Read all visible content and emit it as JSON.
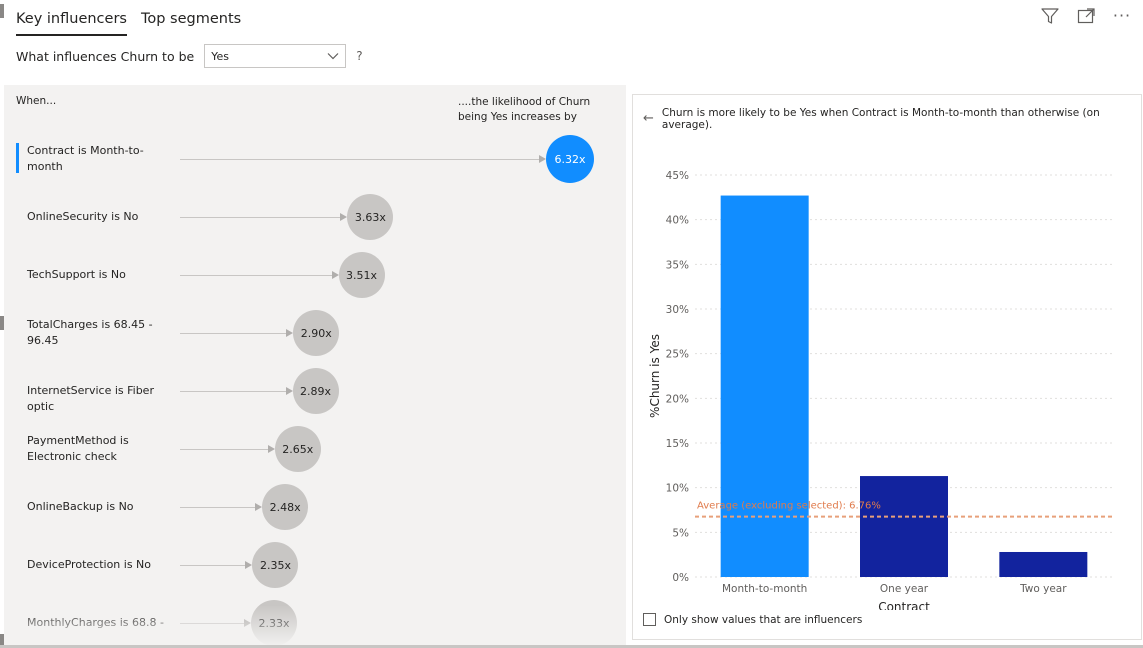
{
  "tabs": [
    {
      "label": "Key influencers",
      "active": true
    },
    {
      "label": "Top segments",
      "active": false
    }
  ],
  "toolbar": {
    "filter_icon": "filter-icon",
    "focus_icon": "focus-mode-icon",
    "more_label": "···"
  },
  "question": {
    "prefix": "What influences Churn to be",
    "selected_value": "Yes",
    "help": "?"
  },
  "left_panel": {
    "header_when": "When...",
    "header_likelihood": "....the likelihood of Churn being Yes increases by",
    "influencers": [
      {
        "label": "Contract is Month-to-month",
        "value": 6.32,
        "display": "6.32x",
        "selected": true
      },
      {
        "label": "OnlineSecurity is No",
        "value": 3.63,
        "display": "3.63x",
        "selected": false
      },
      {
        "label": "TechSupport is No",
        "value": 3.51,
        "display": "3.51x",
        "selected": false
      },
      {
        "label": "TotalCharges is 68.45 - 96.45",
        "value": 2.9,
        "display": "2.90x",
        "selected": false
      },
      {
        "label": "InternetService is Fiber optic",
        "value": 2.89,
        "display": "2.89x",
        "selected": false
      },
      {
        "label": "PaymentMethod is Electronic check",
        "value": 2.65,
        "display": "2.65x",
        "selected": false
      },
      {
        "label": "OnlineBackup is No",
        "value": 2.48,
        "display": "2.48x",
        "selected": false
      },
      {
        "label": "DeviceProtection is No",
        "value": 2.35,
        "display": "2.35x",
        "selected": false
      },
      {
        "label": "MonthlyCharges is 68.8 -",
        "value": 2.33,
        "display": "2.33x",
        "selected": false
      }
    ]
  },
  "right_panel": {
    "back_icon": "back-arrow-icon",
    "description": "Churn is more likely to be Yes when Contract is Month-to-month than otherwise (on average).",
    "only_influencers_label": "Only show values that are influencers",
    "only_influencers_checked": false
  },
  "chart_data": {
    "type": "bar",
    "categories": [
      "Month-to-month",
      "One year",
      "Two year"
    ],
    "values": [
      42.7,
      11.3,
      2.8
    ],
    "bar_colors": [
      "#118dff",
      "#12239e",
      "#12239e"
    ],
    "xlabel": "Contract",
    "ylabel": "%Churn is Yes",
    "ylim": [
      0,
      45
    ],
    "yticks": [
      0,
      5,
      10,
      15,
      20,
      25,
      30,
      35,
      40,
      45
    ],
    "ytick_labels": [
      "0%",
      "5%",
      "10%",
      "15%",
      "20%",
      "25%",
      "30%",
      "35%",
      "40%",
      "45%"
    ],
    "grid": true,
    "reference_line": {
      "value": 6.76,
      "label": "Average (excluding selected): 6.76%",
      "color": "#e8a07a"
    }
  },
  "colors": {
    "accent": "#118dff",
    "bar_dark": "#12239e",
    "bubble_gray": "#c8c6c4",
    "panel_bg": "#f3f2f1"
  }
}
